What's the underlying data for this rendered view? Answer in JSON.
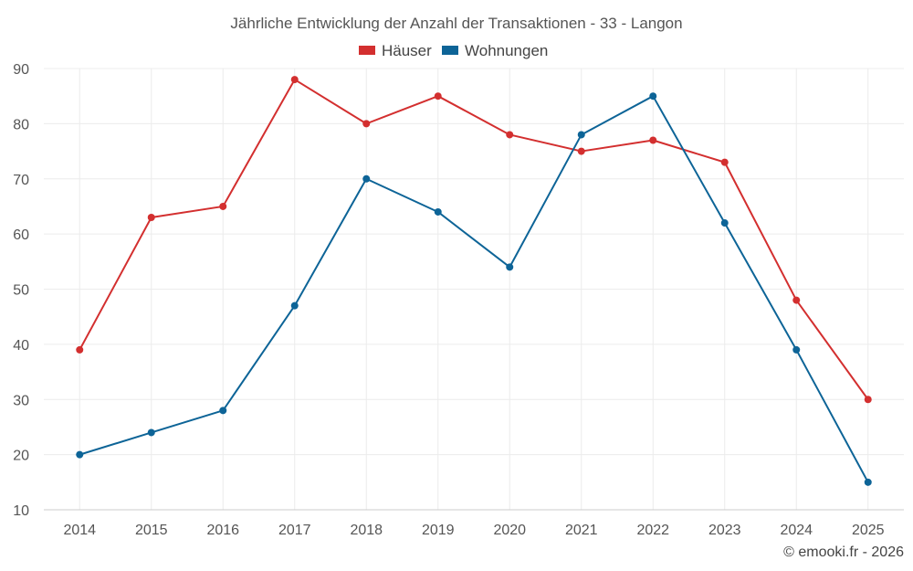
{
  "chart_data": {
    "type": "line",
    "title": "Jährliche Entwicklung der Anzahl der Transaktionen - 33 - Langon",
    "xlabel": "",
    "ylabel": "",
    "categories": [
      "2014",
      "2015",
      "2016",
      "2017",
      "2018",
      "2019",
      "2020",
      "2021",
      "2022",
      "2023",
      "2024",
      "2025"
    ],
    "ylim": [
      10,
      90
    ],
    "yticks": [
      10,
      20,
      30,
      40,
      50,
      60,
      70,
      80,
      90
    ],
    "grid": true,
    "legend_position": "top-center",
    "series": [
      {
        "name": "Häuser",
        "color": "#d32f2f",
        "values": [
          39,
          63,
          65,
          88,
          80,
          85,
          78,
          75,
          77,
          73,
          48,
          30
        ]
      },
      {
        "name": "Wohnungen",
        "color": "#0d6497",
        "values": [
          20,
          24,
          28,
          47,
          70,
          64,
          54,
          78,
          85,
          62,
          39,
          15
        ]
      }
    ]
  },
  "credit": "© emooki.fr - 2026"
}
